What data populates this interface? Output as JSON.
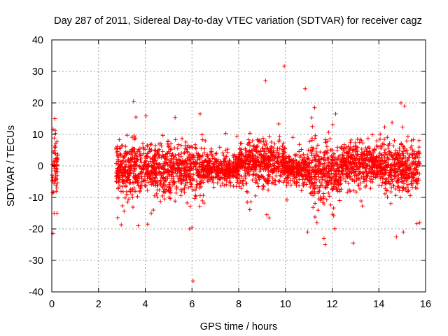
{
  "chart_data": {
    "type": "scatter",
    "title": "Day 287 of 2011, Sidereal Day-to-day VTEC variation (SDTVAR) for receiver cagz",
    "xlabel": "GPS time / hours",
    "ylabel": "SDTVAR / TECUs",
    "xlim": [
      0,
      16
    ],
    "ylim": [
      -40,
      40
    ],
    "xticks": [
      0,
      2,
      4,
      6,
      8,
      10,
      12,
      14,
      16
    ],
    "xtick_labels": [
      "0",
      "2",
      "4",
      "6",
      "8",
      "10",
      "12",
      "14",
      "16"
    ],
    "yticks": [
      40,
      30,
      20,
      10,
      0,
      -10,
      -20,
      -30,
      -40
    ],
    "ytick_labels": [
      "40",
      "30",
      "20",
      "10",
      "0",
      "-10",
      "-20",
      "-30",
      "-40"
    ],
    "grid": true,
    "marker": "plus",
    "color": "#ff0000",
    "series": [
      {
        "name": "SDTVAR",
        "segments": [
          {
            "x_range": [
              0.0,
              0.25
            ],
            "center": 0,
            "spread": 4.5
          },
          {
            "x_range": [
              2.75,
              6.6
            ],
            "center": -1,
            "spread": 4.0
          },
          {
            "x_range": [
              6.6,
              8.0
            ],
            "center": -1,
            "spread": 2.2
          },
          {
            "x_range": [
              8.0,
              10.0
            ],
            "center": 1,
            "spread": 3.5
          },
          {
            "x_range": [
              10.0,
              11.0
            ],
            "center": -1,
            "spread": 2.2
          },
          {
            "x_range": [
              11.0,
              12.4
            ],
            "center": -2,
            "spread": 4.5
          },
          {
            "x_range": [
              12.4,
              14.0
            ],
            "center": 1,
            "spread": 3.0
          },
          {
            "x_range": [
              14.0,
              15.75
            ],
            "center": -1,
            "spread": 4.0
          }
        ],
        "outliers": [
          {
            "x": 9.95,
            "y": 31.7
          },
          {
            "x": 9.15,
            "y": 27.0
          },
          {
            "x": 10.85,
            "y": 24.5
          },
          {
            "x": 3.5,
            "y": 20.5
          },
          {
            "x": 14.95,
            "y": 20.0
          },
          {
            "x": 15.1,
            "y": 19.0
          },
          {
            "x": 11.25,
            "y": 18.5
          },
          {
            "x": 6.35,
            "y": 16.5
          },
          {
            "x": 12.15,
            "y": 16.5
          },
          {
            "x": 0.13,
            "y": 15.0
          },
          {
            "x": 3.6,
            "y": 15.5
          },
          {
            "x": 6.05,
            "y": -36.5
          },
          {
            "x": 11.7,
            "y": -25.0
          },
          {
            "x": 12.9,
            "y": -24.5
          },
          {
            "x": 11.65,
            "y": -23.0
          },
          {
            "x": 14.75,
            "y": -22.5
          },
          {
            "x": 15.05,
            "y": -21.0
          },
          {
            "x": 10.95,
            "y": -21.0
          },
          {
            "x": 5.9,
            "y": -20.0
          },
          {
            "x": 6.0,
            "y": -19.5
          },
          {
            "x": 3.7,
            "y": -19.0
          },
          {
            "x": 4.1,
            "y": -18.5
          },
          {
            "x": 15.75,
            "y": -18.0
          },
          {
            "x": 9.3,
            "y": -16.5
          },
          {
            "x": 9.2,
            "y": -15.5
          },
          {
            "x": 0.1,
            "y": -15.0
          },
          {
            "x": 0.22,
            "y": -15.0
          },
          {
            "x": 11.35,
            "y": -18.0
          }
        ]
      }
    ]
  }
}
